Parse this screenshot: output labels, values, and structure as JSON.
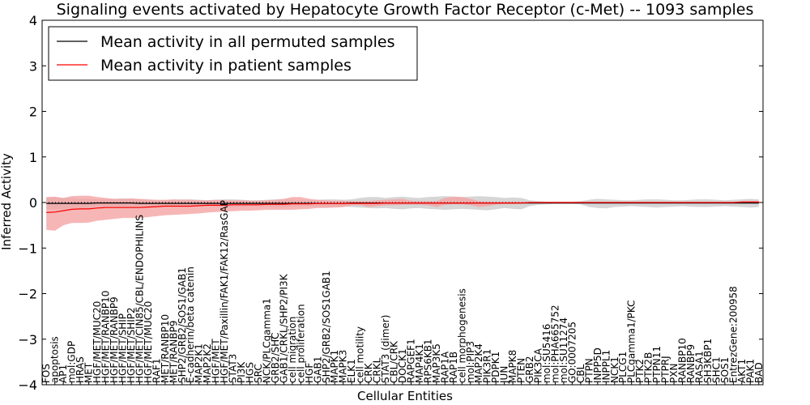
{
  "chart_data": {
    "type": "line",
    "title": "Signaling events activated by Hepatocyte Growth Factor Receptor (c-Met) -- 1093 samples",
    "xlabel": "Cellular Entities",
    "ylabel": "Inferred Activity",
    "ylim": [
      -4,
      4
    ],
    "yticks": [
      -4,
      -3,
      -2,
      -1,
      0,
      1,
      2,
      3,
      4
    ],
    "ytick_labels": [
      "−4",
      "−3",
      "−2",
      "−1",
      "0",
      "1",
      "2",
      "3",
      "4"
    ],
    "legend_position": "top-left",
    "colors": {
      "permuted": "#000000",
      "patient": "#ff0000",
      "patient_band": "#f4a4a4",
      "permuted_band": "#c8c8c8"
    },
    "categories": [
      "FOS",
      "apoptosis",
      "AP1",
      "mol:GDP",
      "HRAS",
      "MET",
      "HGF/MET/MUC20",
      "HGF/MET/RANBP10",
      "HGF/MET/RANBP9",
      "HGF/MET/SHIP",
      "HGF/MET/SHIP2",
      "HGF/MET/CIN85/CBL/ENDOPHILINS",
      "HGF/MET/MUC20",
      "RAF1",
      "MET/RANBP10",
      "MET/RANBP9",
      "SHP2/GRB2/SOS1/GAB1",
      "E-cadherin/beta catenin",
      "MAP2K1",
      "MAP2K2",
      "HGF/MET",
      "HGF/MET/Paxillin/FAK1/FAK12/RasGAP",
      "STAT3",
      "PI3K",
      "HGS",
      "SRC",
      "NCK/PLCgamma1",
      "GRB2/SHC",
      "GAB1/CRKL/SHP2/PI3K",
      "cell migration",
      "cell proliferation",
      "HGF",
      "GAB1",
      "SHP2/GRB2/SOS1GAB1",
      "MAPK1",
      "MAPK3",
      "ELK1",
      "cell motility",
      "CRK",
      "CRKL",
      "STAT3 (dimer)",
      "CBL/CRK",
      "DOCK1",
      "RAPGEF1",
      "MAP4K1",
      "RPS6KB1",
      "MAP3K5",
      "RAP1A",
      "RAP1B",
      "cell morphogenesis",
      "mol:PIP3",
      "MAP2K4",
      "PIK3R1",
      "PDPK1",
      "JUN",
      "MAPK8",
      "PTEN",
      "GRB2",
      "PIK3CA",
      "mol:SU5416",
      "mol:PHA665752",
      "mol:SU11274",
      "GO:0007205",
      "CBL",
      "PTPN",
      "INPP5D",
      "INPPL1",
      "NCK1",
      "PLCG1",
      "PLCgamma1/PKC",
      "PTK2",
      "PTK2B",
      "PTPN11",
      "PTPRJ",
      "PXN",
      "RANBP10",
      "RANBP9",
      "RASA1",
      "SH3KBP1",
      "SHC1",
      "SOS1",
      "EntrezGene:200958",
      "AKT1",
      "PAK1",
      "BAD"
    ],
    "series": [
      {
        "name": "Mean activity in all permuted samples",
        "values": [
          -0.02,
          -0.02,
          -0.02,
          -0.02,
          -0.02,
          -0.02,
          -0.01,
          -0.01,
          -0.01,
          -0.01,
          -0.01,
          -0.02,
          -0.02,
          -0.02,
          -0.02,
          -0.02,
          -0.02,
          -0.02,
          -0.02,
          -0.02,
          -0.02,
          -0.02,
          -0.02,
          -0.02,
          -0.02,
          -0.02,
          -0.02,
          -0.02,
          -0.02,
          -0.02,
          -0.02,
          -0.02,
          -0.02,
          -0.02,
          -0.02,
          -0.02,
          -0.01,
          -0.01,
          -0.01,
          -0.01,
          -0.01,
          -0.01,
          -0.01,
          -0.01,
          -0.01,
          -0.01,
          -0.01,
          -0.01,
          -0.01,
          -0.01,
          -0.01,
          -0.01,
          -0.01,
          -0.01,
          -0.01,
          -0.01,
          -0.01,
          -0.01,
          -0.01,
          -0.01,
          -0.01,
          -0.01,
          -0.01,
          -0.01,
          -0.01,
          -0.01,
          -0.01,
          -0.01,
          -0.01,
          -0.01,
          -0.01,
          -0.01,
          -0.01,
          -0.01,
          -0.01,
          -0.01,
          -0.01,
          -0.01,
          -0.01,
          -0.01,
          -0.01,
          -0.01,
          -0.01,
          -0.01,
          -0.01
        ],
        "lower": [
          -0.14,
          -0.15,
          -0.14,
          -0.12,
          -0.12,
          -0.12,
          -0.1,
          -0.09,
          -0.1,
          -0.11,
          -0.1,
          -0.1,
          -0.09,
          -0.08,
          -0.08,
          -0.09,
          -0.1,
          -0.1,
          -0.09,
          -0.08,
          -0.09,
          -0.1,
          -0.1,
          -0.09,
          -0.08,
          -0.08,
          -0.09,
          -0.1,
          -0.1,
          -0.09,
          -0.08,
          -0.08,
          -0.09,
          -0.1,
          -0.1,
          -0.09,
          -0.1,
          -0.11,
          -0.12,
          -0.13,
          -0.12,
          -0.14,
          -0.15,
          -0.13,
          -0.12,
          -0.14,
          -0.15,
          -0.16,
          -0.15,
          -0.14,
          -0.15,
          -0.16,
          -0.17,
          -0.15,
          -0.12,
          -0.14,
          -0.15,
          -0.08,
          -0.05,
          -0.04,
          -0.03,
          -0.03,
          -0.03,
          -0.04,
          -0.1,
          -0.12,
          -0.13,
          -0.1,
          -0.09,
          -0.08,
          -0.09,
          -0.1,
          -0.11,
          -0.1,
          -0.09,
          -0.08,
          -0.09,
          -0.1,
          -0.1,
          -0.09,
          -0.08,
          -0.09,
          -0.1,
          -0.11,
          -0.1
        ],
        "upper": [
          0.1,
          0.11,
          0.1,
          0.09,
          0.08,
          0.08,
          0.07,
          0.07,
          0.08,
          0.09,
          0.08,
          0.07,
          0.06,
          0.05,
          0.05,
          0.06,
          0.07,
          0.07,
          0.06,
          0.05,
          0.06,
          0.07,
          0.07,
          0.06,
          0.05,
          0.05,
          0.06,
          0.07,
          0.07,
          0.06,
          0.05,
          0.05,
          0.06,
          0.07,
          0.07,
          0.06,
          0.07,
          0.1,
          0.12,
          0.12,
          0.1,
          0.12,
          0.13,
          0.11,
          0.1,
          0.12,
          0.13,
          0.14,
          0.13,
          0.12,
          0.13,
          0.14,
          0.13,
          0.12,
          0.1,
          0.11,
          0.1,
          0.05,
          0.03,
          0.02,
          0.02,
          0.02,
          0.02,
          0.03,
          0.06,
          0.08,
          0.07,
          0.06,
          0.05,
          0.05,
          0.06,
          0.07,
          0.07,
          0.06,
          0.05,
          0.05,
          0.06,
          0.07,
          0.07,
          0.06,
          0.05,
          0.06,
          0.07,
          0.08,
          0.07
        ]
      },
      {
        "name": "Mean activity in patient samples",
        "values": [
          -0.22,
          -0.21,
          -0.18,
          -0.15,
          -0.14,
          -0.14,
          -0.12,
          -0.11,
          -0.11,
          -0.11,
          -0.11,
          -0.11,
          -0.1,
          -0.09,
          -0.08,
          -0.08,
          -0.08,
          -0.08,
          -0.07,
          -0.06,
          -0.06,
          -0.06,
          -0.05,
          -0.05,
          -0.05,
          -0.05,
          -0.04,
          -0.04,
          -0.04,
          -0.03,
          -0.03,
          -0.03,
          -0.02,
          -0.02,
          -0.02,
          -0.02,
          -0.02,
          -0.02,
          -0.02,
          -0.02,
          -0.01,
          -0.01,
          -0.01,
          -0.01,
          -0.01,
          -0.01,
          -0.01,
          -0.01,
          -0.01,
          -0.01,
          -0.01,
          -0.01,
          -0.01,
          -0.01,
          -0.01,
          -0.01,
          -0.01,
          0,
          0,
          0,
          0,
          0,
          0,
          0,
          0,
          0,
          0,
          0,
          0,
          0,
          0,
          0,
          0,
          0,
          0,
          0,
          0,
          0,
          0,
          0,
          0,
          0,
          0.01,
          0.01,
          0.01
        ],
        "lower": [
          -0.6,
          -0.62,
          -0.5,
          -0.45,
          -0.45,
          -0.44,
          -0.4,
          -0.38,
          -0.36,
          -0.34,
          -0.34,
          -0.34,
          -0.32,
          -0.3,
          -0.28,
          -0.27,
          -0.26,
          -0.25,
          -0.24,
          -0.22,
          -0.21,
          -0.2,
          -0.19,
          -0.18,
          -0.18,
          -0.17,
          -0.16,
          -0.16,
          -0.16,
          -0.16,
          -0.15,
          -0.14,
          -0.12,
          -0.12,
          -0.11,
          -0.1,
          -0.06,
          -0.06,
          -0.1,
          -0.08,
          -0.06,
          -0.06,
          -0.05,
          -0.05,
          -0.05,
          -0.06,
          -0.1,
          -0.05,
          -0.04,
          -0.04,
          -0.06,
          -0.1,
          -0.08,
          -0.05,
          -0.03,
          -0.03,
          -0.02,
          0,
          0,
          0,
          0,
          0,
          0,
          0,
          0,
          0,
          0,
          0,
          0,
          0,
          0,
          0,
          0,
          0,
          0,
          0,
          0,
          0,
          0,
          0,
          0,
          0,
          0,
          0,
          0
        ],
        "upper": [
          0.12,
          0.13,
          0.1,
          0.14,
          0.15,
          0.15,
          0.12,
          0.1,
          0.08,
          0.08,
          0.09,
          0.08,
          0.07,
          0.06,
          0.06,
          0.07,
          0.06,
          0.06,
          0.05,
          0.05,
          0.06,
          0.05,
          0.05,
          0.05,
          0.04,
          0.04,
          0.05,
          0.06,
          0.08,
          0.12,
          0.12,
          0.08,
          0.06,
          0.05,
          0.04,
          0.04,
          0.03,
          0.03,
          0.03,
          0.05,
          0.06,
          0.07,
          0.08,
          0.04,
          0.03,
          0.03,
          0.03,
          0.1,
          0.13,
          0.12,
          0.08,
          0.03,
          0.02,
          0.02,
          0.02,
          0.02,
          0.02,
          0,
          0,
          0,
          0,
          0,
          0,
          0,
          0,
          0,
          0,
          0,
          0,
          0,
          0,
          0,
          0,
          0,
          0,
          0,
          0,
          0,
          0,
          0,
          0,
          0,
          0.03,
          0.03,
          0.03
        ]
      }
    ]
  }
}
